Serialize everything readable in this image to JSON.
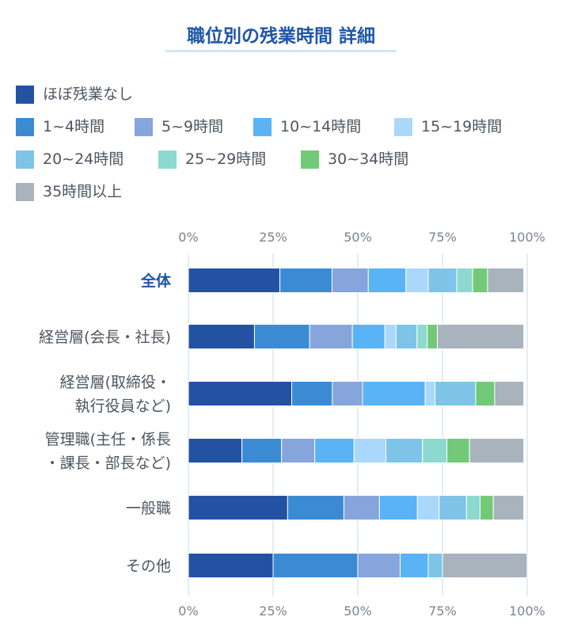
{
  "title": "職位別の残業時間 詳細",
  "colors": {
    "title": "#1e56a8",
    "highlight_category": "#1e56a8",
    "category_text": "#4d5660",
    "tick_text": "#7a8591",
    "grid": "#dce6f0"
  },
  "chart_data": {
    "type": "bar",
    "orientation": "horizontal",
    "stacked": true,
    "normalized": true,
    "title": "職位別の残業時間 詳細",
    "xlim": [
      0,
      100
    ],
    "x_ticks": [
      "0%",
      "25%",
      "50%",
      "75%",
      "100%"
    ],
    "x_ticks_top_and_bottom": true,
    "grid": true,
    "legend_position": "top",
    "highlight_category_index": 0,
    "categories": [
      [
        "全体"
      ],
      [
        "経営層(会長・社長)"
      ],
      [
        "経営層(取締役・",
        "執行役員など)"
      ],
      [
        "管理職(主任・係長",
        "・課長・部長など)"
      ],
      [
        "一般職"
      ],
      [
        "その他"
      ]
    ],
    "series": [
      {
        "name": "ほぼ残業なし",
        "color": "#2452a3",
        "values": [
          27.0,
          19.5,
          30.5,
          15.8,
          29.3,
          25.0
        ]
      },
      {
        "name": "1~4時間",
        "color": "#3b8bd4",
        "values": [
          15.4,
          16.3,
          12.0,
          11.7,
          16.6,
          25.0
        ]
      },
      {
        "name": "5~9時間",
        "color": "#86a5dc",
        "values": [
          10.7,
          12.6,
          8.9,
          9.8,
          10.5,
          12.5
        ]
      },
      {
        "name": "10~14時間",
        "color": "#5ab3f5",
        "values": [
          11.1,
          9.6,
          18.5,
          11.6,
          11.2,
          8.3
        ]
      },
      {
        "name": "15~19時間",
        "color": "#aad8fa",
        "values": [
          6.6,
          3.3,
          2.9,
          9.4,
          6.4,
          0
        ]
      },
      {
        "name": "20~24時間",
        "color": "#7ec4e8",
        "values": [
          8.4,
          6.2,
          12.0,
          10.8,
          8.1,
          4.2
        ]
      },
      {
        "name": "25~29時間",
        "color": "#8dd9d0",
        "values": [
          4.7,
          3.0,
          0,
          7.2,
          4.0,
          0
        ]
      },
      {
        "name": "30~34時間",
        "color": "#72c978",
        "values": [
          4.4,
          3.0,
          5.6,
          6.7,
          3.9,
          0
        ]
      },
      {
        "name": "35時間以上",
        "color": "#a9b3be",
        "values": [
          10.7,
          25.5,
          8.6,
          16.0,
          9.0,
          25.0
        ]
      }
    ]
  }
}
